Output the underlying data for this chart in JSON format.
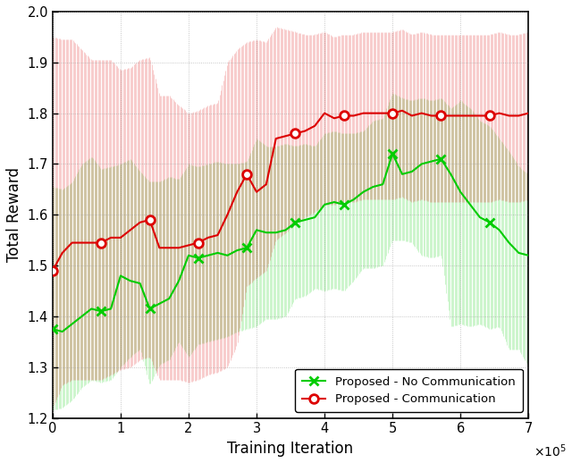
{
  "title": "",
  "xlabel": "Training Iteration",
  "ylabel": "Total Reward",
  "xlim": [
    0,
    700000
  ],
  "ylim": [
    1.2,
    2.0
  ],
  "xticks": [
    0,
    100000,
    200000,
    300000,
    400000,
    500000,
    600000,
    700000
  ],
  "yticks": [
    1.2,
    1.3,
    1.4,
    1.5,
    1.6,
    1.7,
    1.8,
    1.9,
    2.0
  ],
  "green_color": "#00CC00",
  "red_color": "#DD0000",
  "legend_labels": [
    "Proposed - No Communication",
    "Proposed - Communication"
  ],
  "no_comm_x": [
    0,
    14286,
    28571,
    42857,
    57143,
    71429,
    85714,
    100000,
    114286,
    128571,
    142857,
    157143,
    171429,
    185714,
    200000,
    214286,
    228571,
    242857,
    257143,
    271429,
    285714,
    300000,
    314286,
    328571,
    342857,
    357143,
    371429,
    385714,
    400000,
    414286,
    428571,
    442857,
    457143,
    471429,
    485714,
    500000,
    514286,
    528571,
    542857,
    557143,
    571429,
    585714,
    600000,
    614286,
    628571,
    642857,
    657143,
    671429,
    685714,
    700000
  ],
  "no_comm_y": [
    1.375,
    1.37,
    1.385,
    1.4,
    1.415,
    1.41,
    1.415,
    1.48,
    1.47,
    1.465,
    1.415,
    1.425,
    1.435,
    1.47,
    1.52,
    1.515,
    1.52,
    1.525,
    1.52,
    1.53,
    1.535,
    1.57,
    1.565,
    1.565,
    1.57,
    1.585,
    1.59,
    1.595,
    1.62,
    1.625,
    1.62,
    1.63,
    1.645,
    1.655,
    1.66,
    1.72,
    1.68,
    1.685,
    1.7,
    1.705,
    1.71,
    1.68,
    1.645,
    1.62,
    1.595,
    1.585,
    1.57,
    1.545,
    1.525,
    1.52
  ],
  "comm_x": [
    0,
    14286,
    28571,
    42857,
    57143,
    71429,
    85714,
    100000,
    114286,
    128571,
    142857,
    157143,
    171429,
    185714,
    200000,
    214286,
    228571,
    242857,
    257143,
    271429,
    285714,
    300000,
    314286,
    328571,
    342857,
    357143,
    371429,
    385714,
    400000,
    414286,
    428571,
    442857,
    457143,
    471429,
    485714,
    500000,
    514286,
    528571,
    542857,
    557143,
    571429,
    585714,
    600000,
    614286,
    628571,
    642857,
    657143,
    671429,
    685714,
    700000
  ],
  "comm_y": [
    1.49,
    1.525,
    1.545,
    1.545,
    1.545,
    1.545,
    1.555,
    1.555,
    1.57,
    1.585,
    1.59,
    1.535,
    1.535,
    1.535,
    1.54,
    1.545,
    1.555,
    1.56,
    1.6,
    1.645,
    1.68,
    1.645,
    1.66,
    1.75,
    1.755,
    1.76,
    1.765,
    1.775,
    1.8,
    1.79,
    1.795,
    1.795,
    1.8,
    1.8,
    1.8,
    1.8,
    1.805,
    1.795,
    1.8,
    1.795,
    1.795,
    1.795,
    1.795,
    1.795,
    1.795,
    1.795,
    1.8,
    1.795,
    1.795,
    1.8
  ],
  "no_comm_err_upper": [
    0.28,
    0.28,
    0.28,
    0.3,
    0.3,
    0.28,
    0.28,
    0.22,
    0.24,
    0.22,
    0.25,
    0.24,
    0.24,
    0.2,
    0.18,
    0.18,
    0.18,
    0.18,
    0.18,
    0.17,
    0.17,
    0.18,
    0.17,
    0.17,
    0.17,
    0.15,
    0.15,
    0.14,
    0.14,
    0.14,
    0.14,
    0.13,
    0.12,
    0.13,
    0.13,
    0.12,
    0.15,
    0.14,
    0.13,
    0.12,
    0.12,
    0.13,
    0.18,
    0.19,
    0.19,
    0.19,
    0.18,
    0.18,
    0.17,
    0.16
  ],
  "no_comm_err_lower": [
    0.16,
    0.15,
    0.15,
    0.14,
    0.14,
    0.14,
    0.14,
    0.18,
    0.15,
    0.13,
    0.15,
    0.12,
    0.12,
    0.12,
    0.2,
    0.17,
    0.17,
    0.17,
    0.16,
    0.16,
    0.16,
    0.19,
    0.17,
    0.17,
    0.17,
    0.15,
    0.15,
    0.14,
    0.17,
    0.17,
    0.17,
    0.16,
    0.15,
    0.16,
    0.16,
    0.17,
    0.13,
    0.14,
    0.18,
    0.19,
    0.19,
    0.3,
    0.26,
    0.24,
    0.21,
    0.21,
    0.19,
    0.21,
    0.19,
    0.22
  ],
  "comm_err_upper": [
    0.46,
    0.42,
    0.4,
    0.38,
    0.36,
    0.36,
    0.35,
    0.33,
    0.32,
    0.32,
    0.32,
    0.3,
    0.3,
    0.28,
    0.26,
    0.26,
    0.26,
    0.26,
    0.3,
    0.28,
    0.26,
    0.3,
    0.28,
    0.22,
    0.21,
    0.2,
    0.19,
    0.18,
    0.16,
    0.16,
    0.16,
    0.16,
    0.16,
    0.16,
    0.16,
    0.16,
    0.16,
    0.16,
    0.16,
    0.16,
    0.16,
    0.16,
    0.16,
    0.16,
    0.16,
    0.16,
    0.16,
    0.16,
    0.16,
    0.16
  ],
  "comm_err_lower": [
    0.27,
    0.26,
    0.27,
    0.27,
    0.27,
    0.27,
    0.27,
    0.26,
    0.27,
    0.27,
    0.27,
    0.26,
    0.26,
    0.26,
    0.27,
    0.27,
    0.27,
    0.27,
    0.3,
    0.3,
    0.22,
    0.17,
    0.17,
    0.2,
    0.19,
    0.18,
    0.17,
    0.17,
    0.18,
    0.17,
    0.17,
    0.17,
    0.17,
    0.17,
    0.17,
    0.17,
    0.17,
    0.17,
    0.17,
    0.17,
    0.17,
    0.17,
    0.17,
    0.17,
    0.17,
    0.17,
    0.17,
    0.17,
    0.17,
    0.17
  ]
}
